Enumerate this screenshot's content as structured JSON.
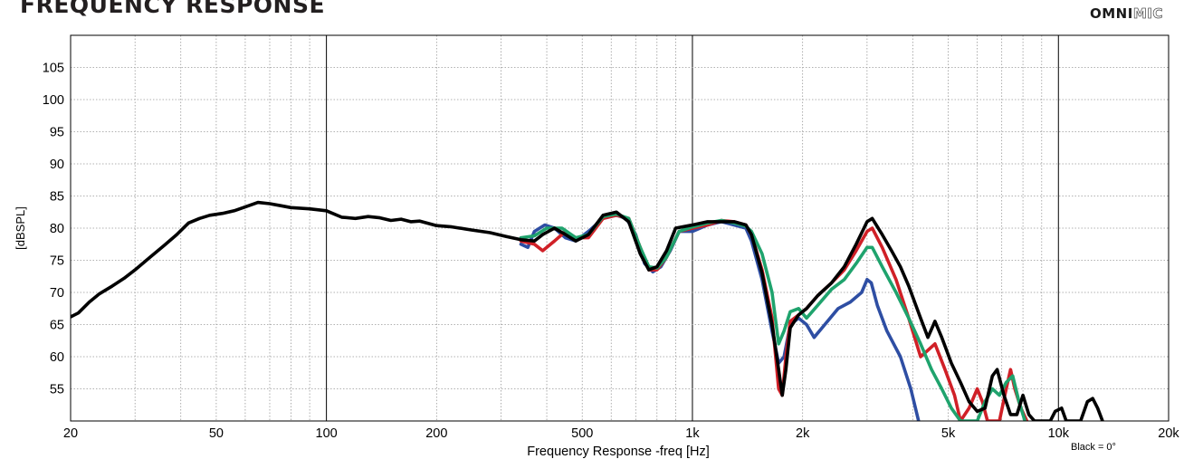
{
  "header": {
    "title": "FREQUENCY RESPONSE",
    "brand_bold": "OMNI",
    "brand_outline": "MIC"
  },
  "footer": {
    "note": "Black = 0°"
  },
  "chart_data": {
    "type": "line",
    "title": "FREQUENCY RESPONSE",
    "xlabel": "Frequency Response -freq [Hz]",
    "ylabel": "[dBSPL]",
    "xscale": "log",
    "xlim": [
      20,
      20000
    ],
    "ylim": [
      50,
      110
    ],
    "grid": true,
    "x_ticks": [
      {
        "v": 20,
        "label": "20"
      },
      {
        "v": 50,
        "label": "50"
      },
      {
        "v": 100,
        "label": "100"
      },
      {
        "v": 200,
        "label": "200"
      },
      {
        "v": 500,
        "label": "500"
      },
      {
        "v": 1000,
        "label": "1k"
      },
      {
        "v": 2000,
        "label": "2k"
      },
      {
        "v": 5000,
        "label": "5k"
      },
      {
        "v": 10000,
        "label": "10k"
      },
      {
        "v": 20000,
        "label": "20k"
      }
    ],
    "y_ticks": [
      55,
      60,
      65,
      70,
      75,
      80,
      85,
      90,
      95,
      100,
      105
    ],
    "series": [
      {
        "color": "#2e4ea3",
        "values": [
          [
            340,
            77.5
          ],
          [
            355,
            77
          ],
          [
            370,
            79.5
          ],
          [
            395,
            80.5
          ],
          [
            420,
            80
          ],
          [
            450,
            78.5
          ],
          [
            480,
            78
          ],
          [
            520,
            79.5
          ],
          [
            570,
            81.5
          ],
          [
            620,
            82
          ],
          [
            660,
            81.5
          ],
          [
            700,
            79
          ],
          [
            740,
            74.5
          ],
          [
            780,
            73.2
          ],
          [
            820,
            74
          ],
          [
            870,
            76.5
          ],
          [
            920,
            79.5
          ],
          [
            1000,
            79.5
          ],
          [
            1100,
            80.5
          ],
          [
            1200,
            81
          ],
          [
            1300,
            80.5
          ],
          [
            1400,
            80
          ],
          [
            1450,
            78
          ],
          [
            1550,
            72
          ],
          [
            1650,
            64
          ],
          [
            1720,
            59
          ],
          [
            1780,
            60
          ],
          [
            1850,
            65
          ],
          [
            1950,
            66
          ],
          [
            2050,
            65
          ],
          [
            2150,
            63
          ],
          [
            2300,
            65
          ],
          [
            2500,
            67.5
          ],
          [
            2700,
            68.5
          ],
          [
            2900,
            70
          ],
          [
            3000,
            72
          ],
          [
            3080,
            71.5
          ],
          [
            3200,
            68
          ],
          [
            3400,
            64
          ],
          [
            3700,
            60
          ],
          [
            3950,
            55
          ],
          [
            4150,
            50
          ]
        ]
      },
      {
        "color": "#d02027",
        "values": [
          [
            340,
            78
          ],
          [
            370,
            77.5
          ],
          [
            390,
            76.5
          ],
          [
            420,
            78
          ],
          [
            450,
            79.5
          ],
          [
            480,
            78.5
          ],
          [
            520,
            78.5
          ],
          [
            570,
            81.5
          ],
          [
            620,
            82
          ],
          [
            670,
            81.5
          ],
          [
            720,
            77
          ],
          [
            760,
            73.5
          ],
          [
            800,
            73.5
          ],
          [
            850,
            75.5
          ],
          [
            920,
            79.5
          ],
          [
            1000,
            80
          ],
          [
            1100,
            80.5
          ],
          [
            1200,
            81.2
          ],
          [
            1300,
            81
          ],
          [
            1400,
            80.5
          ],
          [
            1450,
            79
          ],
          [
            1550,
            73.5
          ],
          [
            1650,
            66
          ],
          [
            1720,
            55
          ],
          [
            1760,
            54
          ],
          [
            1800,
            60
          ],
          [
            1850,
            65.5
          ],
          [
            1950,
            66.5
          ],
          [
            2050,
            67.5
          ],
          [
            2200,
            69.5
          ],
          [
            2400,
            71.5
          ],
          [
            2600,
            73.5
          ],
          [
            2800,
            76.5
          ],
          [
            3000,
            79.5
          ],
          [
            3100,
            80
          ],
          [
            3300,
            77
          ],
          [
            3600,
            72
          ],
          [
            3900,
            66
          ],
          [
            4200,
            60
          ],
          [
            4400,
            61
          ],
          [
            4600,
            62
          ],
          [
            4900,
            58
          ],
          [
            5200,
            54
          ],
          [
            5400,
            50
          ],
          [
            5700,
            52
          ],
          [
            6000,
            55
          ],
          [
            6200,
            53
          ],
          [
            6400,
            50
          ],
          [
            6900,
            50
          ],
          [
            7200,
            55
          ],
          [
            7400,
            58
          ],
          [
            7600,
            55
          ],
          [
            7900,
            52
          ],
          [
            8200,
            50
          ]
        ]
      },
      {
        "color": "#1fa36d",
        "values": [
          [
            340,
            78.5
          ],
          [
            370,
            78.8
          ],
          [
            400,
            80
          ],
          [
            440,
            80
          ],
          [
            480,
            78.5
          ],
          [
            520,
            79
          ],
          [
            570,
            81.8
          ],
          [
            620,
            82.2
          ],
          [
            670,
            81.5
          ],
          [
            720,
            77
          ],
          [
            760,
            74
          ],
          [
            800,
            73.8
          ],
          [
            850,
            75.5
          ],
          [
            920,
            79.5
          ],
          [
            1000,
            80.2
          ],
          [
            1100,
            80.8
          ],
          [
            1200,
            81.2
          ],
          [
            1300,
            80.8
          ],
          [
            1400,
            80.3
          ],
          [
            1450,
            79.5
          ],
          [
            1550,
            76
          ],
          [
            1650,
            70
          ],
          [
            1720,
            62
          ],
          [
            1780,
            64
          ],
          [
            1850,
            67
          ],
          [
            1950,
            67.5
          ],
          [
            2050,
            66
          ],
          [
            2200,
            68
          ],
          [
            2400,
            70.5
          ],
          [
            2600,
            72
          ],
          [
            2800,
            74.5
          ],
          [
            3000,
            77
          ],
          [
            3100,
            77
          ],
          [
            3300,
            74
          ],
          [
            3600,
            70
          ],
          [
            3900,
            66
          ],
          [
            4200,
            62
          ],
          [
            4500,
            58
          ],
          [
            4800,
            55
          ],
          [
            5100,
            52
          ],
          [
            5400,
            50
          ],
          [
            6000,
            50
          ],
          [
            6300,
            53
          ],
          [
            6600,
            55
          ],
          [
            6900,
            54
          ],
          [
            7200,
            56
          ],
          [
            7500,
            57
          ],
          [
            7800,
            53
          ],
          [
            8100,
            50
          ]
        ]
      },
      {
        "color": "#000000",
        "values": [
          [
            20,
            66.2
          ],
          [
            21,
            66.8
          ],
          [
            22.5,
            68.5
          ],
          [
            24,
            69.8
          ],
          [
            26,
            71
          ],
          [
            28,
            72.2
          ],
          [
            30,
            73.5
          ],
          [
            33,
            75.5
          ],
          [
            36,
            77.3
          ],
          [
            39,
            79
          ],
          [
            42,
            80.8
          ],
          [
            45,
            81.5
          ],
          [
            48,
            82
          ],
          [
            52,
            82.3
          ],
          [
            56,
            82.7
          ],
          [
            60,
            83.3
          ],
          [
            65,
            84
          ],
          [
            70,
            83.8
          ],
          [
            75,
            83.5
          ],
          [
            80,
            83.2
          ],
          [
            90,
            83
          ],
          [
            100,
            82.7
          ],
          [
            110,
            81.7
          ],
          [
            120,
            81.5
          ],
          [
            130,
            81.8
          ],
          [
            140,
            81.6
          ],
          [
            150,
            81.2
          ],
          [
            160,
            81.4
          ],
          [
            170,
            81
          ],
          [
            180,
            81.1
          ],
          [
            200,
            80.4
          ],
          [
            220,
            80.2
          ],
          [
            250,
            79.7
          ],
          [
            280,
            79.3
          ],
          [
            310,
            78.7
          ],
          [
            340,
            78.2
          ],
          [
            370,
            78
          ],
          [
            390,
            79
          ],
          [
            420,
            80
          ],
          [
            450,
            79
          ],
          [
            480,
            78
          ],
          [
            520,
            79
          ],
          [
            570,
            82
          ],
          [
            620,
            82.5
          ],
          [
            670,
            81
          ],
          [
            720,
            76
          ],
          [
            760,
            73.5
          ],
          [
            800,
            74
          ],
          [
            850,
            76.5
          ],
          [
            900,
            80
          ],
          [
            1000,
            80.5
          ],
          [
            1100,
            81
          ],
          [
            1200,
            81
          ],
          [
            1300,
            81
          ],
          [
            1400,
            80.5
          ],
          [
            1450,
            79
          ],
          [
            1550,
            73
          ],
          [
            1650,
            65
          ],
          [
            1720,
            58
          ],
          [
            1760,
            54
          ],
          [
            1800,
            58
          ],
          [
            1850,
            64.5
          ],
          [
            1950,
            66.5
          ],
          [
            2050,
            67.5
          ],
          [
            2200,
            69.5
          ],
          [
            2400,
            71.5
          ],
          [
            2600,
            74
          ],
          [
            2800,
            77.5
          ],
          [
            3000,
            81
          ],
          [
            3100,
            81.5
          ],
          [
            3300,
            79
          ],
          [
            3500,
            76.5
          ],
          [
            3700,
            74
          ],
          [
            3900,
            71
          ],
          [
            4200,
            66
          ],
          [
            4400,
            63
          ],
          [
            4600,
            65.5
          ],
          [
            4800,
            63
          ],
          [
            5100,
            59
          ],
          [
            5400,
            56
          ],
          [
            5700,
            53
          ],
          [
            6000,
            51.5
          ],
          [
            6300,
            52
          ],
          [
            6600,
            57
          ],
          [
            6800,
            58
          ],
          [
            7100,
            54
          ],
          [
            7400,
            51
          ],
          [
            7700,
            51
          ],
          [
            8000,
            54
          ],
          [
            8300,
            51
          ],
          [
            8600,
            50
          ],
          [
            9500,
            50
          ],
          [
            9800,
            51.5
          ],
          [
            10200,
            52
          ],
          [
            10500,
            50
          ],
          [
            11500,
            50
          ],
          [
            12000,
            53
          ],
          [
            12400,
            53.5
          ],
          [
            12800,
            52
          ],
          [
            13200,
            50
          ]
        ]
      }
    ]
  }
}
